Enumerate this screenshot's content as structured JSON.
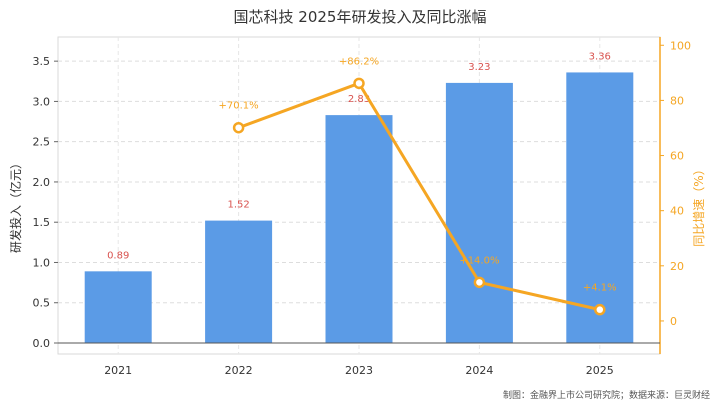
{
  "chart_data": {
    "type": "bar",
    "title": "国芯科技 2025年研发投入及同比涨幅",
    "categories": [
      "2021",
      "2022",
      "2023",
      "2024",
      "2025"
    ],
    "series": [
      {
        "type": "bar",
        "values": [
          0.89,
          1.52,
          2.83,
          3.23,
          3.36
        ],
        "labels": [
          "0.89",
          "1.52",
          "2.83",
          "3.23",
          "3.36"
        ],
        "color": "#5b9be6"
      },
      {
        "type": "line",
        "values": [
          null,
          70.1,
          86.2,
          14.0,
          4.1
        ],
        "labels": [
          "",
          "+70.1%",
          "+86.2%",
          "+14.0%",
          "+4.1%"
        ],
        "color": "#f5a623"
      }
    ],
    "ylabel": "研发投入（亿元）",
    "y2label": "同比增速（%）",
    "ylim": [
      0,
      3.8
    ],
    "y2lim": [
      -8,
      103
    ],
    "yticks": [
      "0.0",
      "0.5",
      "1.0",
      "1.5",
      "2.0",
      "2.5",
      "3.0",
      "3.5"
    ],
    "y2ticks": [
      "0",
      "20",
      "40",
      "60",
      "80",
      "100"
    ],
    "grid": true,
    "bar_label_color": "#d9534f"
  },
  "source_note": "制图：金融界上市公司研究院；数据来源：巨灵财经"
}
